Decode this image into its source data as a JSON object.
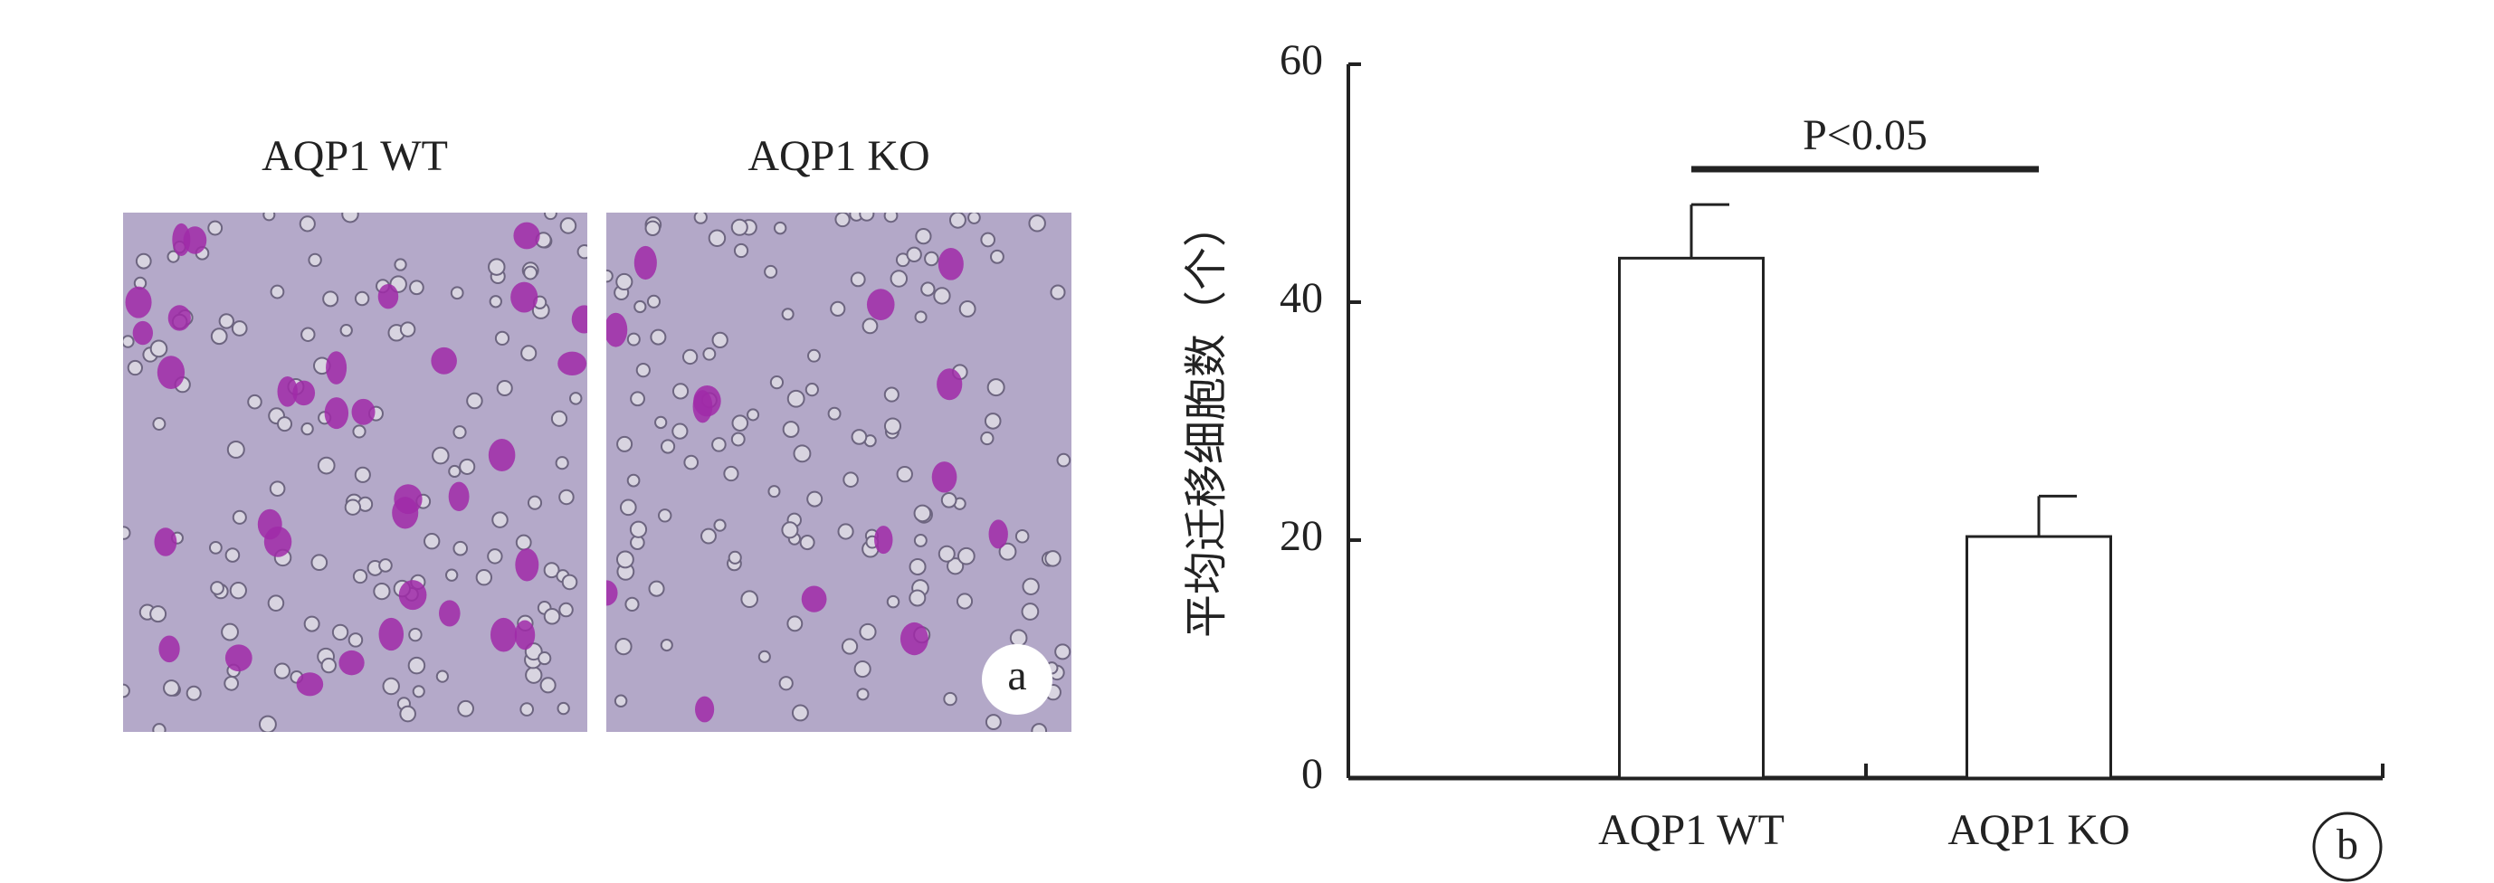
{
  "chart_data": {
    "type": "bar",
    "y_label": "平均迁移细胞数（个）",
    "categories": [
      "AQP1 WT",
      "AQP1 KO"
    ],
    "values": [
      43.7,
      20.3
    ],
    "errors": [
      4.5,
      3.4
    ],
    "color": "#ffffff",
    "ylim": [
      0,
      60
    ],
    "yticks": [
      0,
      20,
      40,
      60
    ],
    "annotation": "P<0.05",
    "panel_label": "b"
  },
  "images": {
    "titles": [
      "AQP1 WT",
      "AQP1 KO"
    ],
    "panel_label": "a"
  }
}
